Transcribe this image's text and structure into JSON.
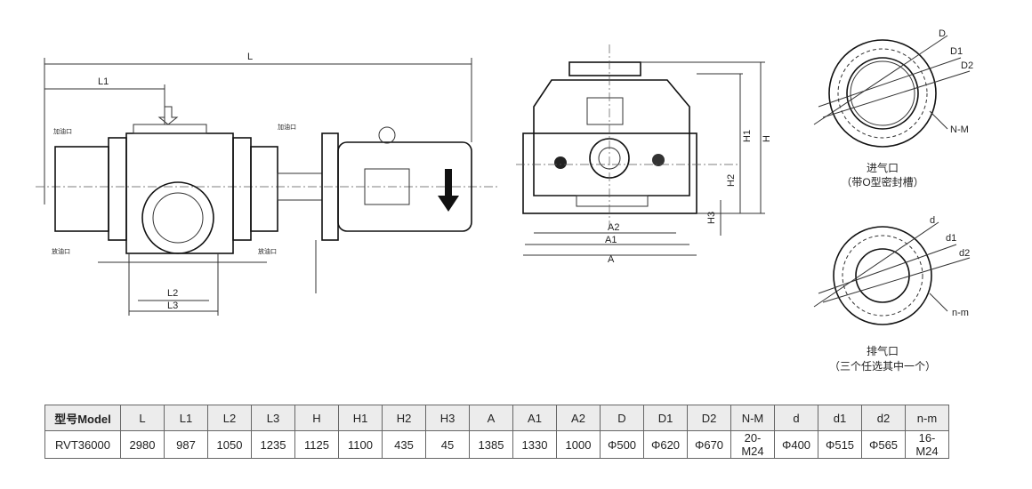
{
  "side_view": {
    "labels": [
      "L",
      "L1",
      "L2",
      "L3",
      "加油口",
      "加油口",
      "放油口",
      "放油口"
    ]
  },
  "front_view": {
    "labels": [
      "A2",
      "A1",
      "A",
      "H1",
      "H",
      "H2",
      "H3"
    ]
  },
  "inlet": {
    "labels": [
      "D",
      "D1",
      "D2",
      "N-M"
    ],
    "title": "进气口",
    "note": "（带O型密封槽）"
  },
  "outlet": {
    "labels": [
      "d",
      "d1",
      "d2",
      "n-m"
    ],
    "title": "排气口",
    "note": "（三个任选其中一个）"
  },
  "table": {
    "header": [
      "型号Model",
      "L",
      "L1",
      "L2",
      "L3",
      "H",
      "H1",
      "H2",
      "H3",
      "A",
      "A1",
      "A2",
      "D",
      "D1",
      "D2",
      "N-M",
      "d",
      "d1",
      "d2",
      "n-m"
    ],
    "rows": [
      [
        "RVT36000",
        "2980",
        "987",
        "1050",
        "1235",
        "1125",
        "1100",
        "435",
        "45",
        "1385",
        "1330",
        "1000",
        "Φ500",
        "Φ620",
        "Φ670",
        "20-M24",
        "Φ400",
        "Φ515",
        "Φ565",
        "16-M24"
      ]
    ]
  }
}
